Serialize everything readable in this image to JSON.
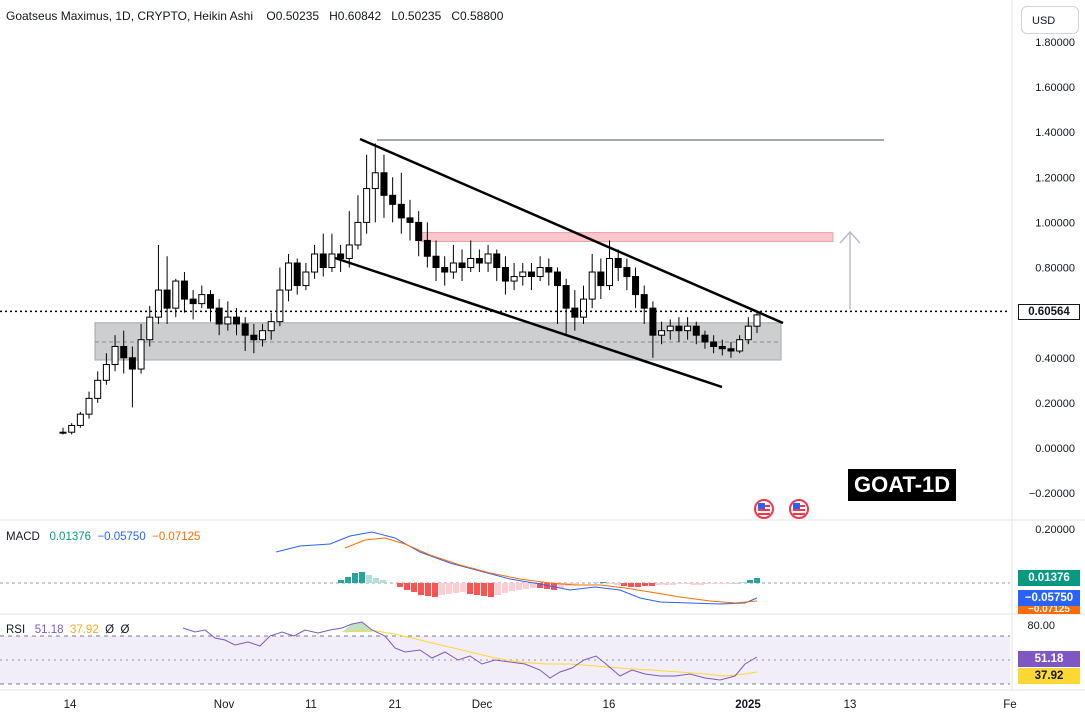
{
  "header": {
    "symbol": "Goatseus Maximus, 1D, CRYPTO, Heikin Ashi",
    "o_label": "O",
    "o": "0.50235",
    "h_label": "H",
    "h": "0.60842",
    "l_label": "L",
    "l": "0.50235",
    "c_label": "C",
    "c": "0.58800"
  },
  "currency": "USD",
  "symbol_label": "GOAT-1D",
  "macd": {
    "name": "MACD",
    "v1": "0.01376",
    "v2": "−0.05750",
    "v3": "−0.07125"
  },
  "rsi": {
    "name": "RSI",
    "v1": "51.18",
    "v2": "37.92",
    "v3": "Ø",
    "v4": "Ø"
  },
  "colors": {
    "up": "#ffffff",
    "down": "#000000",
    "macd_line": "#2962ff",
    "signal_line": "#ff6d00",
    "rsi_line": "#7e57c2",
    "rsi_ma": "#fdd835",
    "hist_pos_strong": "#26a69a",
    "hist_pos_weak": "#b2dfdb",
    "hist_neg_strong": "#ff5252",
    "hist_neg_weak": "#ffcdd2"
  },
  "chart_data": {
    "type": "candlestick",
    "y_ticks": [
      "1.80000",
      "1.60000",
      "1.40000",
      "1.20000",
      "1.00000",
      "0.80000",
      "0.60000",
      "0.40000",
      "0.20000",
      "0.00000",
      "−0.20000"
    ],
    "ylim": [
      -0.25,
      1.88
    ],
    "x_ticks": [
      "14",
      "Nov",
      "11",
      "21",
      "Dec",
      "16",
      "2025",
      "13",
      "Fe"
    ],
    "last_price": "0.60564",
    "macd_ticks": [
      "0.20000"
    ],
    "macd_tags": [
      "0.01376",
      "−0.05750",
      "−0.07125"
    ],
    "rsi_ticks": [
      "80.00"
    ],
    "rsi_tags": [
      "51.18",
      "37.92"
    ],
    "candles": [
      [
        0.07,
        0.07,
        0.09,
        0.06
      ],
      [
        0.07,
        0.1,
        0.11,
        0.06
      ],
      [
        0.1,
        0.15,
        0.16,
        0.09
      ],
      [
        0.15,
        0.22,
        0.25,
        0.13
      ],
      [
        0.22,
        0.3,
        0.34,
        0.2
      ],
      [
        0.3,
        0.37,
        0.42,
        0.28
      ],
      [
        0.37,
        0.45,
        0.5,
        0.34
      ],
      [
        0.45,
        0.4,
        0.52,
        0.33
      ],
      [
        0.4,
        0.35,
        0.45,
        0.18
      ],
      [
        0.35,
        0.48,
        0.55,
        0.33
      ],
      [
        0.48,
        0.58,
        0.63,
        0.45
      ],
      [
        0.58,
        0.7,
        0.9,
        0.55
      ],
      [
        0.7,
        0.62,
        0.85,
        0.55
      ],
      [
        0.62,
        0.74,
        0.75,
        0.58
      ],
      [
        0.74,
        0.66,
        0.78,
        0.6
      ],
      [
        0.66,
        0.64,
        0.7,
        0.57
      ],
      [
        0.64,
        0.68,
        0.72,
        0.62
      ],
      [
        0.68,
        0.62,
        0.7,
        0.56
      ],
      [
        0.62,
        0.55,
        0.66,
        0.5
      ],
      [
        0.55,
        0.58,
        0.65,
        0.52
      ],
      [
        0.58,
        0.55,
        0.62,
        0.5
      ],
      [
        0.55,
        0.5,
        0.58,
        0.43
      ],
      [
        0.5,
        0.48,
        0.55,
        0.42
      ],
      [
        0.48,
        0.52,
        0.55,
        0.45
      ],
      [
        0.52,
        0.56,
        0.6,
        0.48
      ],
      [
        0.56,
        0.7,
        0.8,
        0.54
      ],
      [
        0.7,
        0.82,
        0.86,
        0.65
      ],
      [
        0.82,
        0.72,
        0.84,
        0.68
      ],
      [
        0.72,
        0.78,
        0.82,
        0.7
      ],
      [
        0.78,
        0.86,
        0.9,
        0.75
      ],
      [
        0.86,
        0.8,
        0.95,
        0.76
      ],
      [
        0.8,
        0.86,
        0.95,
        0.78
      ],
      [
        0.86,
        0.84,
        0.9,
        0.78
      ],
      [
        0.84,
        0.9,
        1.05,
        0.8
      ],
      [
        0.9,
        1.0,
        1.12,
        0.88
      ],
      [
        1.0,
        1.15,
        1.3,
        0.95
      ],
      [
        1.15,
        1.22,
        1.35,
        1.0
      ],
      [
        1.22,
        1.12,
        1.3,
        1.02
      ],
      [
        1.12,
        1.08,
        1.2,
        1.0
      ],
      [
        1.08,
        1.02,
        1.22,
        0.95
      ],
      [
        1.02,
        1.0,
        1.1,
        0.92
      ],
      [
        1.0,
        0.92,
        1.05,
        0.85
      ],
      [
        0.92,
        0.85,
        1.0,
        0.8
      ],
      [
        0.85,
        0.8,
        0.92,
        0.74
      ],
      [
        0.8,
        0.78,
        0.85,
        0.72
      ],
      [
        0.78,
        0.82,
        0.9,
        0.75
      ],
      [
        0.82,
        0.8,
        0.88,
        0.74
      ],
      [
        0.8,
        0.84,
        0.92,
        0.78
      ],
      [
        0.84,
        0.82,
        0.88,
        0.78
      ],
      [
        0.82,
        0.86,
        0.9,
        0.78
      ],
      [
        0.86,
        0.8,
        0.88,
        0.74
      ],
      [
        0.8,
        0.74,
        0.85,
        0.68
      ],
      [
        0.74,
        0.76,
        0.82,
        0.7
      ],
      [
        0.76,
        0.78,
        0.82,
        0.72
      ],
      [
        0.78,
        0.76,
        0.82,
        0.7
      ],
      [
        0.76,
        0.8,
        0.85,
        0.74
      ],
      [
        0.8,
        0.78,
        0.84,
        0.72
      ],
      [
        0.78,
        0.72,
        0.8,
        0.55
      ],
      [
        0.72,
        0.62,
        0.75,
        0.5
      ],
      [
        0.62,
        0.58,
        0.7,
        0.52
      ],
      [
        0.58,
        0.66,
        0.72,
        0.55
      ],
      [
        0.66,
        0.78,
        0.86,
        0.62
      ],
      [
        0.78,
        0.72,
        0.84,
        0.66
      ],
      [
        0.72,
        0.84,
        0.92,
        0.7
      ],
      [
        0.84,
        0.8,
        0.88,
        0.74
      ],
      [
        0.8,
        0.76,
        0.84,
        0.7
      ],
      [
        0.76,
        0.68,
        0.8,
        0.62
      ],
      [
        0.68,
        0.62,
        0.72,
        0.55
      ],
      [
        0.62,
        0.5,
        0.65,
        0.4
      ],
      [
        0.5,
        0.52,
        0.56,
        0.46
      ],
      [
        0.52,
        0.54,
        0.57,
        0.48
      ],
      [
        0.54,
        0.52,
        0.58,
        0.47
      ],
      [
        0.52,
        0.54,
        0.58,
        0.48
      ],
      [
        0.54,
        0.5,
        0.56,
        0.46
      ],
      [
        0.5,
        0.47,
        0.52,
        0.44
      ],
      [
        0.47,
        0.45,
        0.5,
        0.42
      ],
      [
        0.45,
        0.44,
        0.48,
        0.41
      ],
      [
        0.44,
        0.43,
        0.47,
        0.4
      ],
      [
        0.43,
        0.48,
        0.5,
        0.42
      ],
      [
        0.48,
        0.54,
        0.58,
        0.46
      ],
      [
        0.54,
        0.59,
        0.61,
        0.51
      ]
    ]
  }
}
